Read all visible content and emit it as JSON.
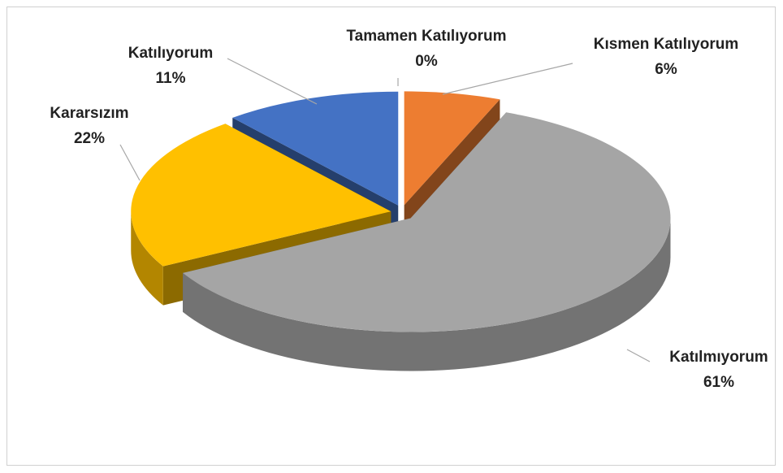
{
  "chart_data": {
    "type": "pie3d",
    "categories": [
      "Tamamen Katılıyorum",
      "Kısmen Katılıyorum",
      "Katılmıyorum",
      "Kararsızım",
      "Katılıyorum"
    ],
    "values": [
      0,
      6,
      61,
      22,
      11
    ],
    "value_labels": [
      "0%",
      "6%",
      "61%",
      "22%",
      "11%"
    ],
    "colors": [
      "#5b9bd5",
      "#ed7d31",
      "#a5a5a5",
      "#ffc000",
      "#4472c4"
    ]
  }
}
